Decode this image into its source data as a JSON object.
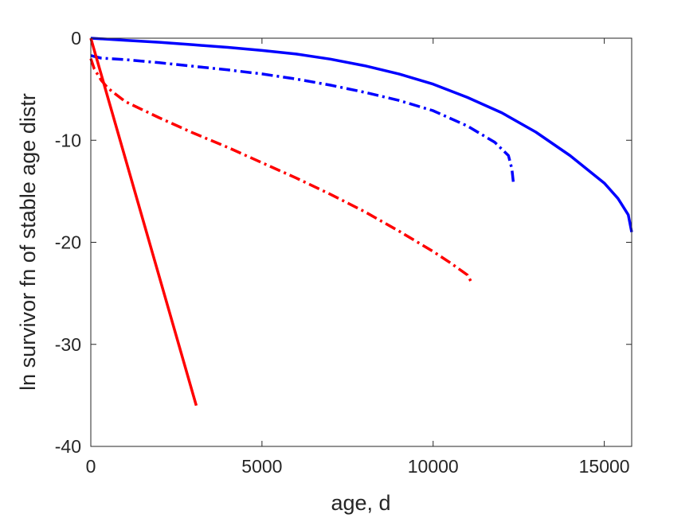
{
  "chart_data": {
    "type": "line",
    "title": "",
    "xlabel": "age, d",
    "ylabel": "ln survivor fn of stable age distr",
    "xlim": [
      0,
      15800
    ],
    "ylim": [
      -40,
      0
    ],
    "xticks": [
      0,
      5000,
      10000,
      15000
    ],
    "xtick_labels": [
      "0",
      "5000",
      "10000",
      "15000"
    ],
    "yticks": [
      0,
      -10,
      -20,
      -30,
      -40
    ],
    "ytick_labels": [
      "0",
      "-10",
      "-20",
      "-30",
      "-40"
    ],
    "grid": false,
    "series": [
      {
        "color": "#0000ff",
        "style": "solid",
        "x": [
          0,
          1000,
          2000,
          3000,
          4000,
          5000,
          6000,
          7000,
          8000,
          9000,
          10000,
          11000,
          12000,
          13000,
          14000,
          15000,
          15400,
          15700,
          15800
        ],
        "y": [
          0,
          -0.2,
          -0.4,
          -0.65,
          -0.9,
          -1.2,
          -1.55,
          -2.05,
          -2.7,
          -3.5,
          -4.5,
          -5.8,
          -7.3,
          -9.2,
          -11.5,
          -14.2,
          -15.7,
          -17.3,
          -19.0
        ]
      },
      {
        "color": "#0000ff",
        "style": "dashdot",
        "x": [
          0,
          300,
          1000,
          2000,
          3000,
          4000,
          5000,
          6000,
          7000,
          8000,
          9000,
          10000,
          11000,
          11800,
          12200,
          12300,
          12350
        ],
        "y": [
          -1.7,
          -1.95,
          -2.1,
          -2.4,
          -2.75,
          -3.1,
          -3.5,
          -4.0,
          -4.6,
          -5.3,
          -6.1,
          -7.1,
          -8.6,
          -10.2,
          -11.5,
          -12.8,
          -14.3
        ]
      },
      {
        "color": "#ff0000",
        "style": "dashdot",
        "x": [
          0,
          100,
          300,
          500,
          1000,
          2000,
          3000,
          4000,
          5000,
          6000,
          7000,
          8000,
          9000,
          10000,
          10500,
          11000,
          11100
        ],
        "y": [
          -2.0,
          -3.0,
          -4.1,
          -4.9,
          -6.2,
          -7.8,
          -9.3,
          -10.7,
          -12.2,
          -13.7,
          -15.3,
          -17.0,
          -18.9,
          -20.9,
          -22.0,
          -23.2,
          -23.8
        ]
      },
      {
        "color": "#ff0000",
        "style": "solid",
        "x": [
          0,
          3080
        ],
        "y": [
          0,
          -36.0
        ]
      }
    ]
  }
}
